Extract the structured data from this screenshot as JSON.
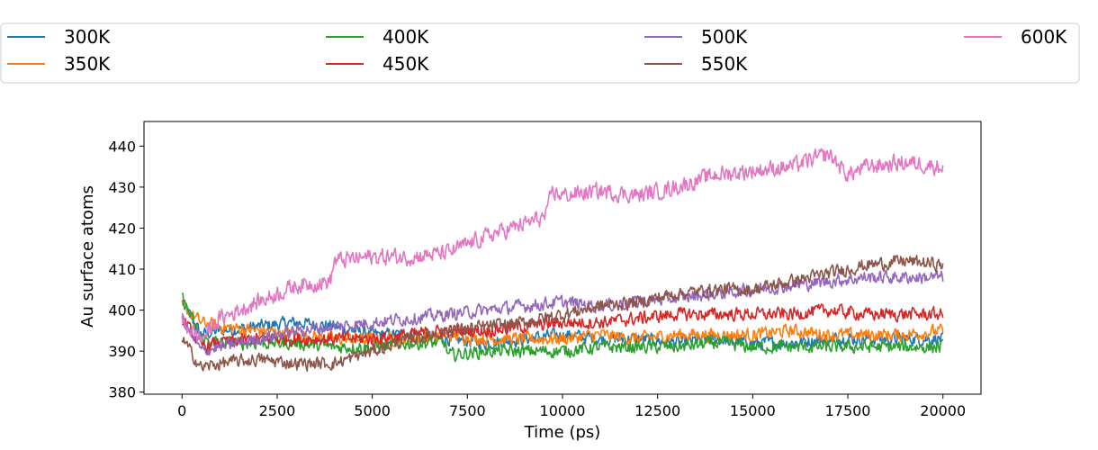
{
  "chart_data": {
    "type": "line",
    "title": "",
    "xlabel": "Time (ps)",
    "ylabel": "Au surface atoms",
    "xlim": [
      -1000,
      21000
    ],
    "ylim": [
      379.5,
      446
    ],
    "x_ticks": [
      0,
      2500,
      5000,
      7500,
      10000,
      12500,
      15000,
      17500,
      20000
    ],
    "y_ticks": [
      380,
      390,
      400,
      410,
      420,
      430,
      440
    ],
    "grid": false,
    "legend_position": "top (above plot, 4 columns)",
    "series": [
      {
        "name": "300K",
        "color": "#1f77b4",
        "x": [
          0,
          500,
          1000,
          2000,
          3000,
          4000,
          5000,
          6000,
          7000,
          8000,
          9000,
          10000,
          11000,
          12000,
          13000,
          14000,
          15000,
          16000,
          17000,
          18000,
          19000,
          20000
        ],
        "y": [
          402,
          394,
          395,
          396,
          397,
          396,
          394,
          394,
          393,
          392,
          393,
          394,
          393,
          393,
          392,
          393,
          392,
          392,
          393,
          393,
          393,
          393
        ]
      },
      {
        "name": "350K",
        "color": "#ff7f0e",
        "x": [
          0,
          500,
          1000,
          2000,
          3000,
          4000,
          5000,
          6000,
          7000,
          8000,
          9000,
          10000,
          11000,
          12000,
          13000,
          14000,
          15000,
          16000,
          17000,
          18000,
          19000,
          20000
        ],
        "y": [
          401,
          397,
          396,
          395,
          394,
          393,
          393,
          393,
          394,
          393,
          393,
          393,
          394,
          393,
          394,
          394,
          394,
          395,
          394,
          394,
          394,
          395
        ]
      },
      {
        "name": "400K",
        "color": "#2ca02c",
        "x": [
          0,
          500,
          1000,
          2000,
          3000,
          4000,
          5000,
          6000,
          6900,
          7000,
          8000,
          9000,
          10000,
          11000,
          12000,
          13000,
          14000,
          15000,
          16000,
          17000,
          18000,
          19000,
          20000
        ],
        "y": [
          403,
          393,
          392,
          392,
          392,
          391,
          391,
          392,
          392,
          389,
          390,
          390,
          390,
          391,
          391,
          391,
          392,
          391,
          391,
          391,
          391,
          391,
          391
        ]
      },
      {
        "name": "450K",
        "color": "#d62728",
        "x": [
          0,
          500,
          1000,
          2000,
          3000,
          4000,
          5000,
          6000,
          7000,
          8000,
          9000,
          10000,
          11000,
          12000,
          13000,
          14000,
          15000,
          16000,
          17000,
          18000,
          19000,
          20000
        ],
        "y": [
          398,
          391,
          392,
          393,
          393,
          393,
          393,
          394,
          395,
          395,
          396,
          397,
          397,
          398,
          399,
          399,
          399,
          399,
          400,
          399,
          399,
          399
        ]
      },
      {
        "name": "500K",
        "color": "#9467bd",
        "x": [
          0,
          500,
          1000,
          2000,
          3000,
          4000,
          5000,
          6000,
          7000,
          8000,
          9000,
          10000,
          11000,
          12000,
          13000,
          14000,
          15000,
          16000,
          17000,
          18000,
          19000,
          20000
        ],
        "y": [
          398,
          390,
          391,
          393,
          395,
          396,
          397,
          398,
          399,
          400,
          401,
          402,
          401,
          402,
          403,
          404,
          405,
          406,
          407,
          408,
          408,
          408
        ]
      },
      {
        "name": "550K",
        "color": "#8c564b",
        "x": [
          0,
          500,
          1000,
          2000,
          3000,
          4000,
          5000,
          6000,
          7000,
          8000,
          9000,
          10000,
          11000,
          12000,
          13000,
          14000,
          15000,
          16000,
          17000,
          18000,
          19000,
          20000
        ],
        "y": [
          393,
          386,
          387,
          388,
          387,
          387,
          390,
          393,
          395,
          396,
          397,
          399,
          401,
          402,
          404,
          405,
          405,
          407,
          409,
          411,
          412,
          411
        ]
      },
      {
        "name": "600K",
        "color": "#e377c2",
        "x": [
          0,
          500,
          1000,
          2000,
          3000,
          3900,
          4000,
          5000,
          6000,
          7000,
          8000,
          9000,
          9600,
          9700,
          10000,
          11000,
          12000,
          13000,
          14000,
          15000,
          16000,
          17000,
          17500,
          18000,
          19000,
          20000
        ],
        "y": [
          397,
          393,
          398,
          402,
          406,
          407,
          412,
          413,
          413,
          414,
          418,
          421,
          423,
          429,
          428,
          429,
          428,
          430,
          433,
          434,
          435,
          438,
          433,
          435,
          436,
          435
        ]
      }
    ]
  }
}
